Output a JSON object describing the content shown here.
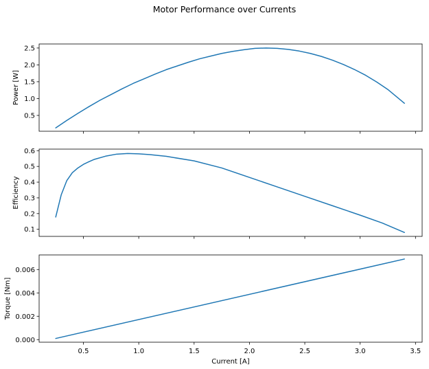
{
  "figure": {
    "title": "Motor Performance over Currents",
    "line_color": "#1f77b4"
  },
  "chart_data": [
    {
      "type": "line",
      "title": "",
      "xlabel": "",
      "ylabel": "Power [W]",
      "xlim": [
        0.1,
        3.56
      ],
      "ylim": [
        0.03,
        2.62
      ],
      "xticks": [
        0.5,
        1.0,
        1.5,
        2.0,
        2.5,
        3.0,
        3.5
      ],
      "xtick_labels_shown": false,
      "yticks": [
        0.5,
        1.0,
        1.5,
        2.0,
        2.5
      ],
      "ytick_labels": [
        "0.5",
        "1.0",
        "1.5",
        "2.0",
        "2.5"
      ],
      "grid": false,
      "series": [
        {
          "x": [
            0.25,
            0.35,
            0.45,
            0.55,
            0.65,
            0.75,
            0.85,
            0.95,
            1.05,
            1.15,
            1.25,
            1.35,
            1.45,
            1.55,
            1.65,
            1.75,
            1.85,
            1.95,
            2.05,
            2.15,
            2.25,
            2.35,
            2.45,
            2.55,
            2.65,
            2.75,
            2.85,
            2.95,
            3.05,
            3.15,
            3.25,
            3.4
          ],
          "y": [
            0.13,
            0.35,
            0.56,
            0.76,
            0.95,
            1.12,
            1.29,
            1.45,
            1.59,
            1.73,
            1.86,
            1.97,
            2.08,
            2.18,
            2.26,
            2.34,
            2.4,
            2.45,
            2.49,
            2.5,
            2.49,
            2.46,
            2.41,
            2.34,
            2.25,
            2.14,
            2.01,
            1.86,
            1.69,
            1.49,
            1.27,
            0.86
          ]
        }
      ]
    },
    {
      "type": "line",
      "title": "",
      "xlabel": "",
      "ylabel": "Efficiency",
      "xlim": [
        0.1,
        3.56
      ],
      "ylim": [
        0.055,
        0.61
      ],
      "xticks": [
        0.5,
        1.0,
        1.5,
        2.0,
        2.5,
        3.0,
        3.5
      ],
      "xtick_labels_shown": false,
      "yticks": [
        0.1,
        0.2,
        0.3,
        0.4,
        0.5,
        0.6
      ],
      "ytick_labels": [
        "0.1",
        "0.2",
        "0.3",
        "0.4",
        "0.5",
        "0.6"
      ],
      "grid": false,
      "series": [
        {
          "x": [
            0.25,
            0.3,
            0.35,
            0.4,
            0.45,
            0.5,
            0.55,
            0.6,
            0.7,
            0.8,
            0.9,
            1.0,
            1.1,
            1.25,
            1.5,
            1.75,
            2.0,
            2.25,
            2.5,
            2.75,
            3.0,
            3.2,
            3.4
          ],
          "y": [
            0.178,
            0.32,
            0.41,
            0.46,
            0.49,
            0.513,
            0.53,
            0.545,
            0.565,
            0.578,
            0.582,
            0.58,
            0.575,
            0.564,
            0.535,
            0.49,
            0.43,
            0.37,
            0.31,
            0.25,
            0.19,
            0.14,
            0.08
          ]
        }
      ]
    },
    {
      "type": "line",
      "title": "",
      "xlabel": "Current [A]",
      "ylabel": "Torque [Nm]",
      "xlim": [
        0.1,
        3.56
      ],
      "ylim": [
        -0.00022,
        0.00725
      ],
      "xticks": [
        0.5,
        1.0,
        1.5,
        2.0,
        2.5,
        3.0,
        3.5
      ],
      "xtick_labels": [
        "0.5",
        "1.0",
        "1.5",
        "2.0",
        "2.5",
        "3.0",
        "3.5"
      ],
      "xtick_labels_shown": true,
      "yticks": [
        0.0,
        0.002,
        0.004,
        0.006
      ],
      "ytick_labels": [
        "0.000",
        "0.002",
        "0.004",
        "0.006"
      ],
      "grid": false,
      "series": [
        {
          "x": [
            0.25,
            3.4
          ],
          "y": [
            0.0001,
            0.0069
          ]
        }
      ]
    }
  ]
}
